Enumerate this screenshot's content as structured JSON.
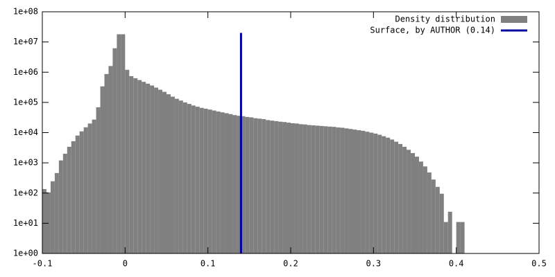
{
  "chart_data": {
    "type": "histogram",
    "bins": [
      -0.1,
      -0.095,
      -0.09,
      -0.085,
      -0.08,
      -0.075,
      -0.07,
      -0.065,
      -0.06,
      -0.055,
      -0.05,
      -0.045,
      -0.04,
      -0.035,
      -0.03,
      -0.025,
      -0.02,
      -0.015,
      -0.01,
      -0.005,
      0,
      0.005,
      0.01,
      0.015,
      0.02,
      0.025,
      0.03,
      0.035,
      0.04,
      0.045,
      0.05,
      0.055,
      0.06,
      0.065,
      0.07,
      0.075,
      0.08,
      0.085,
      0.09,
      0.095,
      0.1,
      0.105,
      0.11,
      0.115,
      0.12,
      0.125,
      0.13,
      0.135,
      0.14,
      0.145,
      0.15,
      0.155,
      0.16,
      0.165,
      0.17,
      0.175,
      0.18,
      0.185,
      0.19,
      0.195,
      0.2,
      0.205,
      0.21,
      0.215,
      0.22,
      0.225,
      0.23,
      0.235,
      0.24,
      0.245,
      0.25,
      0.255,
      0.26,
      0.265,
      0.27,
      0.275,
      0.28,
      0.285,
      0.29,
      0.295,
      0.3,
      0.305,
      0.31,
      0.315,
      0.32,
      0.325,
      0.33,
      0.335,
      0.34,
      0.345,
      0.35,
      0.355,
      0.36,
      0.365,
      0.37,
      0.375,
      0.38,
      0.385,
      0.39,
      0.395,
      0.4,
      0.405,
      0.41
    ],
    "series": [
      {
        "name": "Density distribution",
        "color": "#808080",
        "values": [
          135,
          105,
          245,
          460,
          1200,
          2000,
          3400,
          5200,
          8000,
          11000,
          15000,
          20000,
          27000,
          69000,
          340000,
          870000,
          1600000,
          6200000,
          18000000,
          18000000,
          1200000,
          741000,
          631000,
          550000,
          479000,
          417000,
          363000,
          309000,
          263000,
          224000,
          186000,
          155000,
          132000,
          115000,
          100000,
          89000,
          79000,
          72000,
          66000,
          62000,
          58000,
          54000,
          50000,
          47000,
          44000,
          41000,
          38000,
          36000,
          35000,
          33000,
          32000,
          30000,
          29000,
          28000,
          26000,
          25000,
          24000,
          23000,
          22400,
          21400,
          20400,
          20000,
          19000,
          18600,
          17800,
          17400,
          17000,
          16600,
          16200,
          15800,
          15500,
          14800,
          14500,
          13800,
          13200,
          12600,
          12000,
          11500,
          10700,
          10000,
          9300,
          8500,
          7600,
          6800,
          5900,
          5000,
          4200,
          3400,
          2700,
          2100,
          1600,
          1100,
          760,
          480,
          280,
          160,
          95,
          11,
          24,
          0,
          11,
          11
        ]
      },
      {
        "name": "Surface, by AUTHOR (0.14)",
        "color": "#0000a0",
        "x": 0.14,
        "values": [
          1,
          20000000
        ]
      }
    ],
    "xlim": [
      -0.1,
      0.5
    ],
    "xticks": [
      -0.1,
      0,
      0.1,
      0.2,
      0.3,
      0.4,
      0.5
    ],
    "ylim": [
      1,
      100000000
    ],
    "log_y": true,
    "yticks": [
      {
        "value": 1,
        "label": "1e+00"
      },
      {
        "value": 10,
        "label": "1e+01"
      },
      {
        "value": 100,
        "label": "1e+02"
      },
      {
        "value": 1000,
        "label": "1e+03"
      },
      {
        "value": 10000,
        "label": "1e+04"
      },
      {
        "value": 100000,
        "label": "1e+05"
      },
      {
        "value": 1000000,
        "label": "1e+06"
      },
      {
        "value": 10000000,
        "label": "1e+07"
      },
      {
        "value": 100000000,
        "label": "1e+08"
      }
    ],
    "legend": "top-right"
  }
}
